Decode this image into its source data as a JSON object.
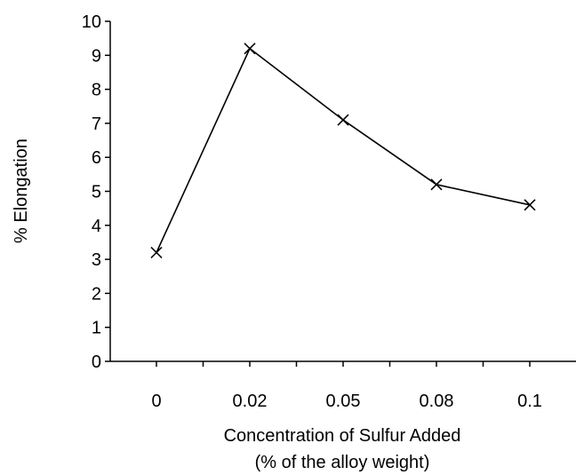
{
  "chart_data": {
    "type": "line",
    "xlabel": [
      "Concentration of Sulfur Added",
      "(% of the alloy weight)"
    ],
    "ylabel": "% Elongation",
    "categories": [
      "0",
      "0.02",
      "0.05",
      "0.08",
      "0.1"
    ],
    "series": [
      {
        "values": [
          3.2,
          9.2,
          7.1,
          5.2,
          4.6
        ]
      }
    ],
    "ylim": [
      0,
      10
    ],
    "yticks": [
      "0",
      "1",
      "2",
      "3",
      "4",
      "5",
      "6",
      "7",
      "8",
      "9",
      "10"
    ],
    "marker": "x",
    "grid": false,
    "legend": "none",
    "colors": {
      "line": "#000000",
      "axis": "#000000"
    }
  }
}
